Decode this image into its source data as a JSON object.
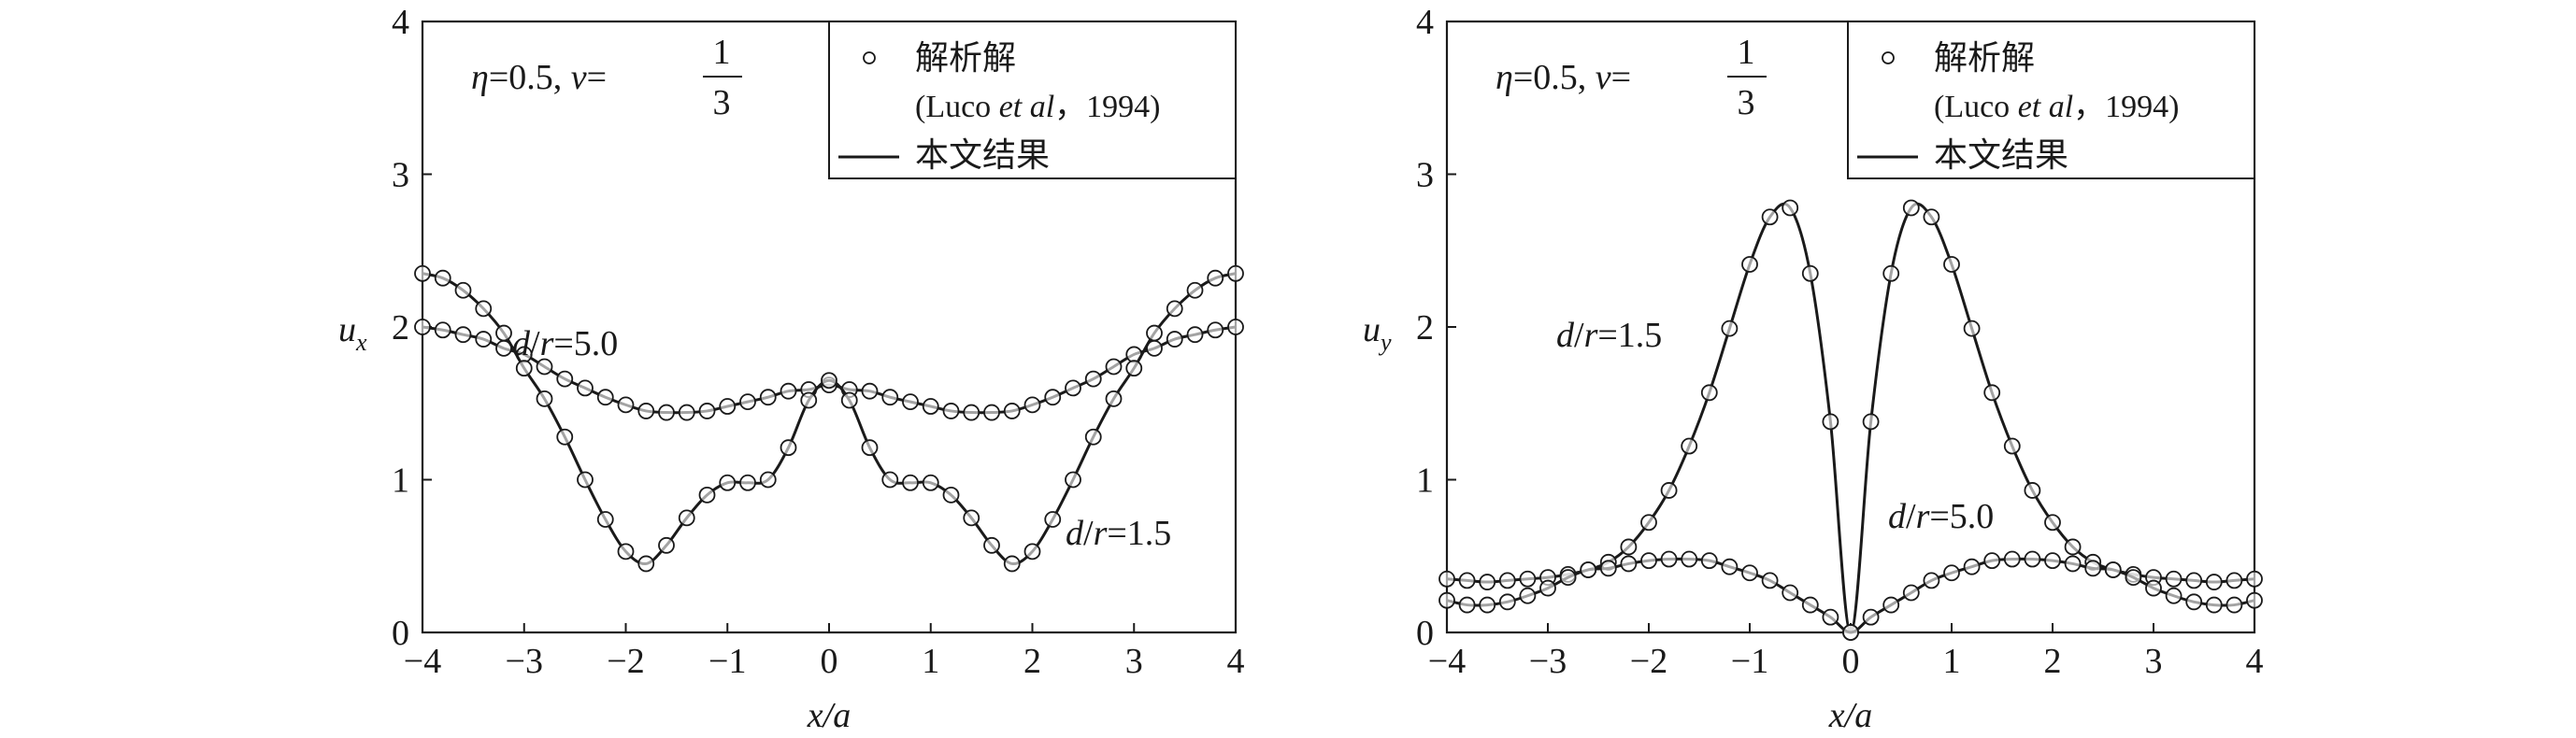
{
  "chart_data": [
    {
      "type": "line",
      "title": "",
      "xlabel": "x/a",
      "ylabel": "u_x",
      "ylabel_main": "u",
      "ylabel_sub": "x",
      "xlim": [
        -4,
        4
      ],
      "ylim": [
        0,
        4
      ],
      "xticks": [
        "−4",
        "−3",
        "−2",
        "−1",
        "0",
        "1",
        "2",
        "3",
        "4"
      ],
      "yticks": [
        "0",
        "1",
        "2",
        "3",
        "4"
      ],
      "annotation": {
        "eta": "η",
        "eq1": "=0.5, ",
        "nu": "v",
        "eq2": "=",
        "num": "1",
        "den": "3"
      },
      "legend": {
        "placement": "top-right",
        "marker_label": "解析解",
        "marker_label2": "(Luco ",
        "marker_label_it": "et al",
        "marker_label3": "，1994)",
        "line_label": "本文结果"
      },
      "series_labels": [
        {
          "d": "d",
          "slash": "/",
          "r": "r",
          "eq": "=5.0"
        },
        {
          "d": "d",
          "slash": "/",
          "r": "r",
          "eq": "=1.5"
        }
      ],
      "x": [
        -4,
        -3.8,
        -3.6,
        -3.4,
        -3.2,
        -3,
        -2.8,
        -2.6,
        -2.4,
        -2.2,
        -2,
        -1.8,
        -1.6,
        -1.4,
        -1.2,
        -1,
        -0.8,
        -0.6,
        -0.4,
        -0.2,
        0,
        0.2,
        0.4,
        0.6,
        0.8,
        1,
        1.2,
        1.4,
        1.6,
        1.8,
        2,
        2.2,
        2.4,
        2.6,
        2.8,
        3,
        3.2,
        3.4,
        3.6,
        3.8,
        4
      ],
      "series": [
        {
          "name": "d/r=5.0",
          "values": [
            2.0,
            1.98,
            1.95,
            1.92,
            1.86,
            1.82,
            1.74,
            1.66,
            1.6,
            1.54,
            1.49,
            1.45,
            1.44,
            1.44,
            1.45,
            1.48,
            1.51,
            1.54,
            1.58,
            1.59,
            1.62,
            1.59,
            1.58,
            1.54,
            1.51,
            1.48,
            1.45,
            1.44,
            1.44,
            1.45,
            1.49,
            1.54,
            1.6,
            1.66,
            1.74,
            1.82,
            1.86,
            1.92,
            1.95,
            1.98,
            2.0
          ]
        },
        {
          "name": "d/r=1.5",
          "values": [
            2.35,
            2.32,
            2.24,
            2.12,
            1.96,
            1.73,
            1.53,
            1.28,
            1.0,
            0.74,
            0.53,
            0.45,
            0.57,
            0.75,
            0.9,
            0.98,
            0.98,
            1.0,
            1.21,
            1.52,
            1.65,
            1.52,
            1.21,
            1.0,
            0.98,
            0.98,
            0.9,
            0.75,
            0.57,
            0.45,
            0.53,
            0.74,
            1.0,
            1.28,
            1.53,
            1.73,
            1.96,
            2.12,
            2.24,
            2.32,
            2.35
          ]
        }
      ]
    },
    {
      "type": "line",
      "title": "",
      "xlabel": "x/a",
      "ylabel": "u_y",
      "ylabel_main": "u",
      "ylabel_sub": "y",
      "xlim": [
        -4,
        4
      ],
      "ylim": [
        0,
        4
      ],
      "xticks": [
        "−4",
        "−3",
        "−2",
        "−1",
        "0",
        "1",
        "2",
        "3",
        "4"
      ],
      "yticks": [
        "0",
        "1",
        "2",
        "3",
        "4"
      ],
      "annotation": {
        "eta": "η",
        "eq1": "=0.5, ",
        "nu": "v",
        "eq2": "=",
        "num": "1",
        "den": "3"
      },
      "legend": {
        "placement": "top-right",
        "marker_label": "解析解",
        "marker_label2": "(Luco ",
        "marker_label_it": "et al",
        "marker_label3": "，1994)",
        "line_label": "本文结果"
      },
      "series_labels": [
        {
          "d": "d",
          "slash": "/",
          "r": "r",
          "eq": "=1.5"
        },
        {
          "d": "d",
          "slash": "/",
          "r": "r",
          "eq": "=5.0"
        }
      ],
      "x": [
        -4,
        -3.8,
        -3.6,
        -3.4,
        -3.2,
        -3,
        -2.8,
        -2.6,
        -2.4,
        -2.2,
        -2,
        -1.8,
        -1.6,
        -1.4,
        -1.2,
        -1,
        -0.8,
        -0.6,
        -0.4,
        -0.2,
        0,
        0.2,
        0.4,
        0.6,
        0.8,
        1,
        1.2,
        1.4,
        1.6,
        1.8,
        2,
        2.2,
        2.4,
        2.6,
        2.8,
        3,
        3.2,
        3.4,
        3.6,
        3.8,
        4
      ],
      "series": [
        {
          "name": "d/r=1.5",
          "values": [
            0.35,
            0.34,
            0.33,
            0.34,
            0.35,
            0.36,
            0.38,
            0.41,
            0.46,
            0.56,
            0.72,
            0.93,
            1.22,
            1.57,
            1.99,
            2.41,
            2.72,
            2.78,
            2.35,
            1.38,
            0,
            1.38,
            2.35,
            2.78,
            2.72,
            2.41,
            1.99,
            1.57,
            1.22,
            0.93,
            0.72,
            0.56,
            0.46,
            0.41,
            0.38,
            0.36,
            0.35,
            0.34,
            0.33,
            0.34,
            0.35
          ]
        },
        {
          "name": "d/r=5.0",
          "values": [
            0.21,
            0.18,
            0.18,
            0.2,
            0.24,
            0.29,
            0.36,
            0.41,
            0.42,
            0.45,
            0.47,
            0.48,
            0.48,
            0.47,
            0.43,
            0.39,
            0.34,
            0.26,
            0.18,
            0.1,
            0,
            0.1,
            0.18,
            0.26,
            0.34,
            0.39,
            0.43,
            0.47,
            0.48,
            0.48,
            0.47,
            0.45,
            0.42,
            0.41,
            0.36,
            0.29,
            0.24,
            0.2,
            0.18,
            0.18,
            0.21
          ]
        }
      ]
    }
  ],
  "colors": {
    "ink": "#1a1a1a",
    "background": "#ffffff"
  }
}
